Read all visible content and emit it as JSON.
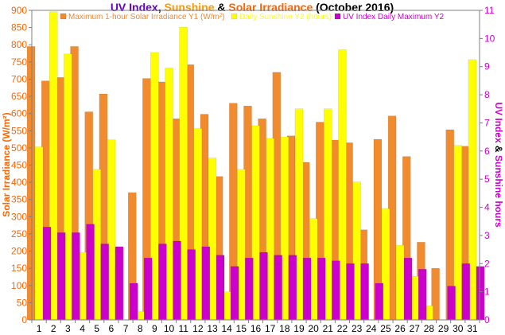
{
  "chart_data": {
    "type": "bar",
    "title": {
      "parts": [
        {
          "text": "UV Index",
          "color": "#6600cc"
        },
        {
          "text": ", ",
          "color": "#000000"
        },
        {
          "text": "Sunshine",
          "color": "#ff9900"
        },
        {
          "text": " & ",
          "color": "#000000"
        },
        {
          "text": "Solar Irradiance",
          "color": "#ff6600"
        },
        {
          "text": "  (October 2016)",
          "color": "#000000"
        }
      ]
    },
    "ylabel_left": "Solar Irradiance (W/m²)",
    "ylabel_right": {
      "parts": [
        {
          "text": "UV Index",
          "color": "#cc00cc"
        },
        {
          "text": " & ",
          "color": "#000000"
        },
        {
          "text": "Sunshine hours",
          "color": "#cc00cc"
        }
      ]
    },
    "ylim_left": [
      0,
      900
    ],
    "ylim_right": [
      0,
      11
    ],
    "left_ticks": [
      0,
      50,
      100,
      150,
      200,
      250,
      300,
      350,
      400,
      450,
      500,
      550,
      600,
      650,
      700,
      750,
      800,
      850,
      900
    ],
    "right_ticks": [
      0,
      1,
      2,
      3,
      4,
      5,
      6,
      7,
      8,
      9,
      10,
      11
    ],
    "left_tick_color": "#ff6600",
    "right_tick_color": "#cc00cc",
    "categories": [
      "1",
      "2",
      "3",
      "4",
      "5",
      "6",
      "7",
      "8",
      "9",
      "10",
      "11",
      "12",
      "13",
      "14",
      "15",
      "16",
      "17",
      "18",
      "19",
      "20",
      "21",
      "22",
      "23",
      "24",
      "25",
      "26",
      "27",
      "28",
      "29",
      "30",
      "31"
    ],
    "grid": false,
    "legend_position": "top",
    "series": [
      {
        "name": "Maximum 1-hour Solar Irradiance Y1 (W/m²)",
        "axis": "left",
        "color": "#f28a2e",
        "values": [
          795,
          695,
          705,
          795,
          605,
          657,
          157,
          370,
          702,
          692,
          585,
          742,
          598,
          417,
          630,
          622,
          585,
          720,
          535,
          458,
          575,
          523,
          515,
          262,
          525,
          593,
          475,
          226,
          150,
          553,
          505
        ]
      },
      {
        "name": "Daily Sunshine Y2 (hours)",
        "axis": "right",
        "color": "#ffff00",
        "values": [
          6.15,
          10.95,
          9.45,
          2.4,
          5.35,
          6.4,
          0,
          0.3,
          9.5,
          8.95,
          10.4,
          6.8,
          5.75,
          1.0,
          5.35,
          6.9,
          6.45,
          6.5,
          7.5,
          3.6,
          7.5,
          9.6,
          4.9,
          0,
          3.95,
          2.65,
          1.55,
          0.5,
          0,
          6.2,
          9.25
        ]
      },
      {
        "name": "UV Index Daily Maximum Y2",
        "axis": "right",
        "color": "#cc00cc",
        "values": [
          3.3,
          3.1,
          3.1,
          3.4,
          2.7,
          2.6,
          1.3,
          2.2,
          2.7,
          2.8,
          2.5,
          2.6,
          2.3,
          1.9,
          2.2,
          2.4,
          2.3,
          2.3,
          2.2,
          2.2,
          2.1,
          2.0,
          2.0,
          1.3,
          0,
          2.2,
          1.8,
          0,
          1.2,
          2.0,
          1.9
        ]
      }
    ]
  }
}
